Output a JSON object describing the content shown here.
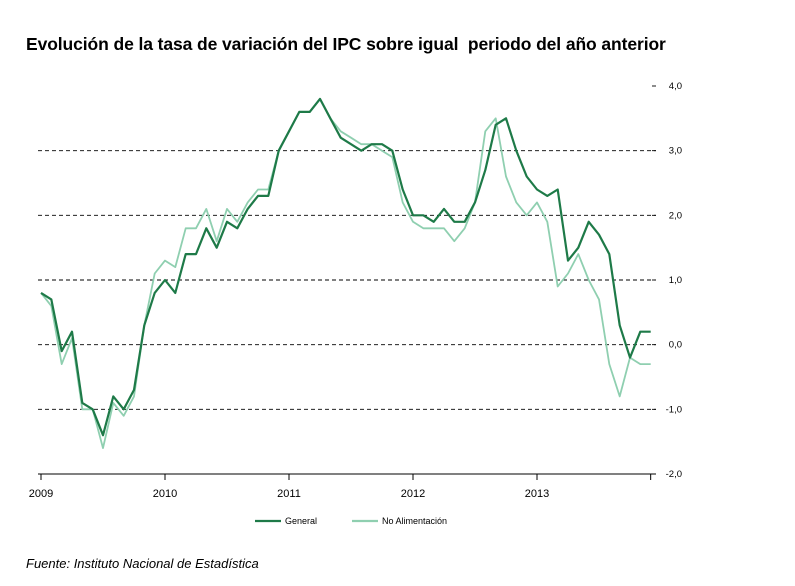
{
  "title": "Evolución de la tasa de variación del IPC sobre igual  periodo del año anterior",
  "source": "Fuente: Instituto Nacional de Estadística",
  "chart_data": {
    "type": "line",
    "x_start": "2009-01",
    "x_labels": [
      "2009",
      "2010",
      "2011",
      "2012",
      "2013"
    ],
    "y_ticks": [
      "4,0",
      "3,0",
      "2,0",
      "1,0",
      "0,0",
      "-1,0",
      "-2,0"
    ],
    "ylim": [
      -2,
      4
    ],
    "dashed_gridlines_at": [
      3,
      2,
      1,
      0,
      -1
    ],
    "legend_position": "bottom",
    "series": [
      {
        "name": "General",
        "color": "#1e7a48",
        "values": [
          0.8,
          0.7,
          -0.1,
          0.2,
          -0.9,
          -1.0,
          -1.4,
          -0.8,
          -1.0,
          -0.7,
          0.3,
          0.8,
          1.0,
          0.8,
          1.4,
          1.4,
          1.8,
          1.5,
          1.9,
          1.8,
          2.1,
          2.3,
          2.3,
          3.0,
          3.3,
          3.6,
          3.6,
          3.8,
          3.5,
          3.2,
          3.1,
          3.0,
          3.1,
          3.1,
          3.0,
          2.4,
          2.0,
          2.0,
          1.9,
          2.1,
          1.9,
          1.9,
          2.2,
          2.7,
          3.4,
          3.5,
          3.0,
          2.6,
          2.4,
          2.3,
          2.4,
          1.3,
          1.5,
          1.9,
          1.7,
          1.4,
          0.3,
          -0.2,
          0.2,
          0.2
        ]
      },
      {
        "name": "No Alimentación",
        "color": "#8fcfb0",
        "values": [
          0.8,
          0.6,
          -0.3,
          0.1,
          -1.0,
          -1.0,
          -1.6,
          -0.9,
          -1.1,
          -0.8,
          0.3,
          1.1,
          1.3,
          1.2,
          1.8,
          1.8,
          2.1,
          1.6,
          2.1,
          1.9,
          2.2,
          2.4,
          2.4,
          3.0,
          3.3,
          3.6,
          3.6,
          3.8,
          3.5,
          3.3,
          3.2,
          3.1,
          3.1,
          3.0,
          2.9,
          2.2,
          1.9,
          1.8,
          1.8,
          1.8,
          1.6,
          1.8,
          2.2,
          3.3,
          3.5,
          2.6,
          2.2,
          2.0,
          2.2,
          1.9,
          0.9,
          1.1,
          1.4,
          1.0,
          0.7,
          -0.3,
          -0.8,
          -0.2,
          -0.3,
          -0.3
        ]
      }
    ]
  }
}
